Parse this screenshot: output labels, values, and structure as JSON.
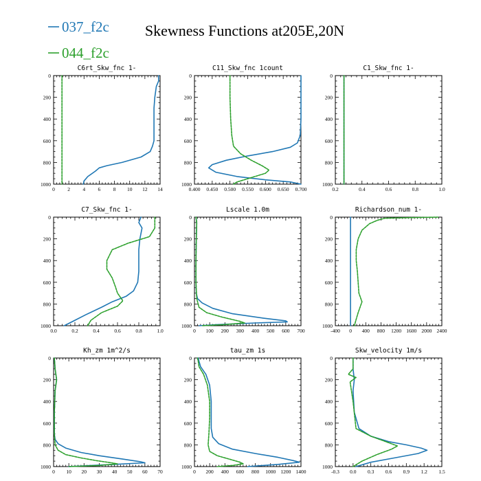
{
  "figure": {
    "title": "Skewness Functions at205E,20N",
    "legend": [
      {
        "name": "037_f2c",
        "color": "#1f77b4"
      },
      {
        "name": "044_f2c",
        "color": "#2ca02c"
      }
    ],
    "legend_placement": "top-left"
  },
  "chart_data": [
    {
      "type": "line",
      "title": "C6rt_Skw_fnc   1-",
      "xlim": [
        0,
        14
      ],
      "ylim": [
        0,
        1000
      ],
      "xticks": [
        0,
        2,
        4,
        6,
        8,
        10,
        12,
        14
      ],
      "yticks": [
        0,
        200,
        400,
        600,
        800,
        1000
      ],
      "series": [
        {
          "name": "037_f2c",
          "color": "#1f77b4",
          "dashed": false,
          "x": [
            13.8,
            13.8,
            13.5,
            13.3,
            13.2,
            13.2,
            13.2,
            13.0,
            12.7,
            11.5,
            9.0,
            7.0,
            6.0,
            5.5,
            4.5,
            4.0,
            3.9
          ],
          "y": [
            0,
            50,
            100,
            200,
            300,
            450,
            600,
            650,
            700,
            750,
            800,
            830,
            850,
            880,
            930,
            970,
            1000
          ]
        },
        {
          "name": "044_f2c",
          "color": "#2ca02c",
          "dashed": true,
          "x": [
            1.1,
            1.1,
            1.1
          ],
          "y": [
            0,
            500,
            1000
          ]
        }
      ]
    },
    {
      "type": "line",
      "title": "C11_Skw_fnc   1count",
      "xlim": [
        0.4,
        0.7
      ],
      "ylim": [
        0,
        1000
      ],
      "xticks": [
        0.4,
        0.45,
        0.5,
        0.55,
        0.6,
        0.65,
        0.7
      ],
      "xtick_labels": [
        "0.400",
        "0.450",
        "0.500",
        "0.550",
        "0.600",
        "0.650",
        "0.700"
      ],
      "yticks": [
        0,
        200,
        400,
        600,
        800,
        1000
      ],
      "series": [
        {
          "name": "037_f2c",
          "color": "#1f77b4",
          "dashed": false,
          "x": [
            0.7,
            0.7,
            0.7,
            0.698,
            0.69,
            0.67,
            0.62,
            0.55,
            0.49,
            0.45,
            0.44,
            0.46,
            0.52,
            0.6,
            0.67,
            0.7
          ],
          "y": [
            0,
            200,
            400,
            550,
            620,
            660,
            700,
            740,
            780,
            820,
            850,
            890,
            930,
            960,
            980,
            1000
          ]
        },
        {
          "name": "044_f2c",
          "color": "#2ca02c",
          "dashed": true,
          "x": [
            0.5,
            0.5,
            0.502,
            0.505,
            0.51,
            0.53,
            0.56,
            0.59,
            0.61,
            0.6,
            0.57,
            0.54,
            0.52,
            0.51
          ],
          "y": [
            0,
            200,
            400,
            550,
            650,
            720,
            780,
            830,
            870,
            900,
            930,
            960,
            980,
            1000
          ]
        }
      ]
    },
    {
      "type": "line",
      "title": "C1_Skw_fnc   1-",
      "xlim": [
        0.2,
        1.0
      ],
      "ylim": [
        0,
        1000
      ],
      "xticks": [
        0.2,
        0.4,
        0.6,
        0.8,
        1.0
      ],
      "xtick_labels": [
        "0.2",
        "0.4",
        "0.6",
        "0.8",
        "1.0"
      ],
      "yticks": [
        0,
        200,
        400,
        600,
        800,
        1000
      ],
      "series": [
        {
          "name": "037_f2c",
          "color": "#1f77b4",
          "dashed": false,
          "x": [
            0.265,
            0.265,
            0.265
          ],
          "y": [
            0,
            500,
            1000
          ]
        },
        {
          "name": "044_f2c",
          "color": "#2ca02c",
          "dashed": true,
          "x": [
            0.265,
            0.265,
            0.265
          ],
          "y": [
            0,
            500,
            1000
          ]
        }
      ]
    },
    {
      "type": "line",
      "title": "C7_Skw_fnc   1-",
      "xlim": [
        0.0,
        1.0
      ],
      "ylim": [
        0,
        1000
      ],
      "xticks": [
        0.0,
        0.2,
        0.4,
        0.6,
        0.8,
        1.0
      ],
      "xtick_labels": [
        "0.0",
        "0.2",
        "0.4",
        "0.6",
        "0.8",
        "1.0"
      ],
      "yticks": [
        0,
        200,
        400,
        600,
        800,
        1000
      ],
      "series": [
        {
          "name": "037_f2c",
          "color": "#1f77b4",
          "dashed": false,
          "x": [
            0.82,
            0.8,
            0.83,
            0.81,
            0.8,
            0.8,
            0.8,
            0.79,
            0.75,
            0.68,
            0.55,
            0.45,
            0.3,
            0.2,
            0.1
          ],
          "y": [
            0,
            50,
            100,
            200,
            300,
            400,
            500,
            600,
            680,
            730,
            780,
            830,
            900,
            950,
            1000
          ]
        },
        {
          "name": "044_f2c",
          "color": "#2ca02c",
          "dashed": true,
          "x": [
            0.95,
            0.95,
            0.9,
            0.7,
            0.55,
            0.5,
            0.5,
            0.55,
            0.58,
            0.6,
            0.65,
            0.6,
            0.45,
            0.35,
            0.32
          ],
          "y": [
            0,
            100,
            180,
            240,
            300,
            400,
            480,
            560,
            640,
            700,
            770,
            820,
            880,
            950,
            1000
          ]
        }
      ]
    },
    {
      "type": "line",
      "title": "Lscale   1.0m",
      "xlim": [
        0,
        700
      ],
      "ylim": [
        0,
        1000
      ],
      "xticks": [
        0,
        100,
        200,
        300,
        400,
        500,
        600,
        700
      ],
      "yticks": [
        0,
        200,
        400,
        600,
        800,
        1000
      ],
      "series": [
        {
          "name": "037_f2c",
          "color": "#1f77b4",
          "dashed": false,
          "x": [
            10,
            15,
            12,
            10,
            10,
            12,
            20,
            50,
            120,
            250,
            450,
            600,
            610,
            400,
            150,
            30
          ],
          "y": [
            0,
            50,
            200,
            400,
            600,
            700,
            750,
            790,
            840,
            890,
            930,
            955,
            965,
            975,
            990,
            1000
          ]
        },
        {
          "name": "044_f2c",
          "color": "#2ca02c",
          "dashed": true,
          "x": [
            10,
            15,
            12,
            10,
            10,
            15,
            30,
            80,
            180,
            300,
            330,
            200,
            50
          ],
          "y": [
            0,
            50,
            200,
            400,
            600,
            750,
            830,
            880,
            920,
            960,
            975,
            990,
            1000
          ]
        }
      ]
    },
    {
      "type": "line",
      "title": "Richardson_num   1-",
      "xlim": [
        -400,
        2400
      ],
      "ylim": [
        0,
        1000
      ],
      "xticks": [
        -400,
        0,
        400,
        800,
        1200,
        1600,
        2000,
        2400
      ],
      "yticks": [
        0,
        200,
        400,
        600,
        800,
        1000
      ],
      "series": [
        {
          "name": "037_f2c",
          "color": "#1f77b4",
          "dashed": false,
          "x": [
            0,
            0,
            0,
            0
          ],
          "y": [
            0,
            300,
            700,
            1000
          ]
        },
        {
          "name": "044_f2c",
          "color": "#2ca02c",
          "dashed": true,
          "x": [
            2300,
            1500,
            900,
            700,
            500,
            300,
            200,
            150,
            150,
            180,
            200,
            220,
            300,
            250,
            200,
            150,
            100
          ],
          "y": [
            0,
            5,
            10,
            30,
            60,
            120,
            200,
            300,
            400,
            500,
            600,
            700,
            780,
            830,
            880,
            940,
            1000
          ]
        }
      ]
    },
    {
      "type": "line",
      "title": "Kh_zm   1m^2/s",
      "xlim": [
        0,
        70
      ],
      "ylim": [
        0,
        1000
      ],
      "xticks": [
        0,
        10,
        20,
        30,
        40,
        50,
        60,
        70
      ],
      "yticks": [
        0,
        200,
        400,
        600,
        800,
        1000
      ],
      "series": [
        {
          "name": "037_f2c",
          "color": "#1f77b4",
          "dashed": false,
          "x": [
            0.5,
            1,
            2,
            1,
            0.5,
            0.5,
            1,
            3,
            8,
            18,
            30,
            45,
            57,
            60,
            40,
            10
          ],
          "y": [
            0,
            100,
            200,
            300,
            500,
            700,
            750,
            790,
            830,
            870,
            900,
            930,
            955,
            965,
            980,
            1000
          ]
        },
        {
          "name": "044_f2c",
          "color": "#2ca02c",
          "dashed": true,
          "x": [
            0.5,
            1,
            2,
            1,
            0.5,
            0.5,
            1,
            3,
            8,
            18,
            28,
            38,
            42,
            30,
            10
          ],
          "y": [
            0,
            100,
            200,
            300,
            500,
            700,
            800,
            850,
            890,
            920,
            945,
            965,
            975,
            990,
            1000
          ]
        }
      ]
    },
    {
      "type": "line",
      "title": "tau_zm   1s",
      "xlim": [
        0,
        1400
      ],
      "ylim": [
        0,
        1000
      ],
      "xticks": [
        0,
        200,
        400,
        600,
        800,
        1000,
        1200,
        1400
      ],
      "yticks": [
        0,
        200,
        400,
        600,
        800,
        1000
      ],
      "series": [
        {
          "name": "037_f2c",
          "color": "#1f77b4",
          "dashed": false,
          "x": [
            50,
            60,
            80,
            150,
            200,
            220,
            220,
            220,
            240,
            320,
            500,
            800,
            1100,
            1300,
            1380,
            1100,
            700
          ],
          "y": [
            0,
            30,
            80,
            150,
            250,
            400,
            550,
            650,
            730,
            790,
            840,
            880,
            915,
            945,
            960,
            980,
            1000
          ]
        },
        {
          "name": "044_f2c",
          "color": "#2ca02c",
          "dashed": true,
          "x": [
            40,
            50,
            60,
            120,
            170,
            200,
            200,
            190,
            180,
            200,
            300,
            450,
            600,
            640,
            500,
            300
          ],
          "y": [
            0,
            30,
            80,
            150,
            250,
            400,
            550,
            700,
            800,
            860,
            900,
            930,
            960,
            975,
            990,
            1000
          ]
        }
      ]
    },
    {
      "type": "line",
      "title": "Skw_velocity   1m/s",
      "xlim": [
        -0.3,
        1.5
      ],
      "ylim": [
        0,
        1000
      ],
      "xticks": [
        -0.3,
        0.0,
        0.3,
        0.6,
        0.9,
        1.2,
        1.5
      ],
      "xtick_labels": [
        "-0.3",
        "0.0",
        "0.3",
        "0.6",
        "0.9",
        "1.2",
        "1.5"
      ],
      "yticks": [
        0,
        200,
        400,
        600,
        800,
        1000
      ],
      "series": [
        {
          "name": "037_f2c",
          "color": "#1f77b4",
          "dashed": false,
          "x": [
            0.0,
            0.0,
            0.02,
            0.0,
            0.02,
            0.1,
            0.3,
            0.6,
            0.9,
            1.15,
            1.25,
            1.1,
            0.7,
            0.3,
            0.05
          ],
          "y": [
            0,
            100,
            200,
            300,
            500,
            650,
            720,
            770,
            800,
            830,
            850,
            880,
            920,
            960,
            1000
          ]
        },
        {
          "name": "044_f2c",
          "color": "#2ca02c",
          "dashed": true,
          "x": [
            0.0,
            0.0,
            -0.08,
            0.05,
            -0.05,
            0.0,
            0.05,
            0.3,
            0.6,
            0.75,
            0.65,
            0.4,
            0.15,
            0.0
          ],
          "y": [
            0,
            100,
            150,
            180,
            220,
            400,
            650,
            720,
            780,
            810,
            840,
            890,
            950,
            1000
          ]
        }
      ]
    }
  ]
}
